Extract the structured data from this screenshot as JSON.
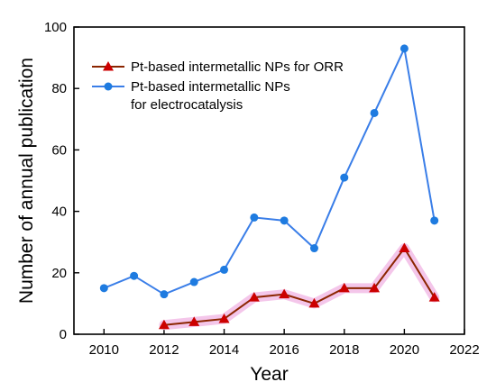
{
  "chart_data": {
    "type": "line",
    "xlabel": "Year",
    "ylabel": "Number of annual publication",
    "xlim": [
      2009,
      2022
    ],
    "ylim": [
      0,
      100
    ],
    "x_ticks": [
      2010,
      2012,
      2014,
      2016,
      2018,
      2020,
      2022
    ],
    "y_ticks": [
      0,
      20,
      40,
      60,
      80,
      100
    ],
    "grid": false,
    "legend_position": "top-left",
    "series": [
      {
        "name": "Pt-based intermetallic NPs for ORR",
        "color": "#cc0000",
        "line_color": "#8b2500",
        "marker": "triangle",
        "x": [
          2012,
          2013,
          2014,
          2015,
          2016,
          2017,
          2018,
          2019,
          2020,
          2021
        ],
        "values": [
          3,
          4,
          5,
          12,
          13,
          10,
          15,
          15,
          28,
          12
        ]
      },
      {
        "name_lines": [
          "Pt-based intermetallic NPs",
          "for electrocatalysis"
        ],
        "color": "#1e7be0",
        "line_color": "#3a7ee8",
        "marker": "circle",
        "x": [
          2010,
          2011,
          2012,
          2013,
          2014,
          2015,
          2016,
          2017,
          2018,
          2019,
          2020,
          2021
        ],
        "values": [
          15,
          19,
          13,
          17,
          21,
          38,
          37,
          28,
          51,
          72,
          93,
          37
        ]
      }
    ]
  }
}
